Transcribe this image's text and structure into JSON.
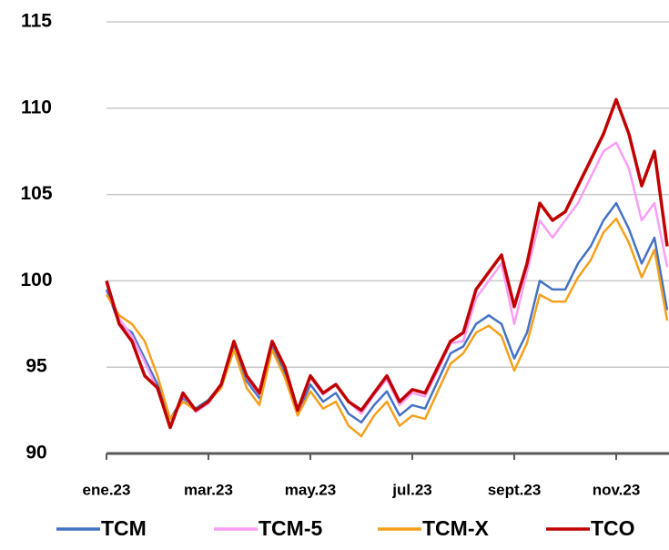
{
  "chart_data": {
    "type": "line",
    "categories": [
      "ene.23",
      null,
      null,
      null,
      null,
      null,
      null,
      null,
      "mar.23",
      null,
      null,
      null,
      null,
      null,
      null,
      null,
      "may.23",
      null,
      null,
      null,
      null,
      null,
      null,
      null,
      "jul.23",
      null,
      null,
      null,
      null,
      null,
      null,
      null,
      "sept.23",
      null,
      null,
      null,
      null,
      null,
      null,
      null,
      "nov.23",
      null,
      null,
      null,
      null
    ],
    "ylim": [
      90,
      115
    ],
    "yticks": [
      90,
      95,
      100,
      105,
      110,
      115
    ],
    "grid": true,
    "series": [
      {
        "name": "TCM",
        "color": "#4472c4",
        "values": [
          99.5,
          97.5,
          97,
          95.5,
          94,
          92,
          93.2,
          92.6,
          93.1,
          94,
          96.3,
          94.2,
          93.2,
          96.2,
          94.6,
          92.3,
          94,
          93,
          93.5,
          92.3,
          91.8,
          92.8,
          93.6,
          92.2,
          92.8,
          92.6,
          94.2,
          95.8,
          96.2,
          97.5,
          98,
          97.5,
          95.5,
          97,
          100,
          99.5,
          99.5,
          101,
          102,
          103.5,
          104.5,
          103,
          101,
          102.5,
          98.3
        ]
      },
      {
        "name": "TCM-5",
        "color": "#f99ef5",
        "values": [
          99.8,
          97.8,
          96.8,
          95.3,
          93.7,
          91.6,
          93.4,
          92.4,
          92.9,
          94,
          96.4,
          94.4,
          93.4,
          96.4,
          95,
          92.4,
          94.4,
          93.4,
          94,
          93,
          92.3,
          93.4,
          94.3,
          92.8,
          93.5,
          93.3,
          94.8,
          96.4,
          96.5,
          99,
          100,
          101,
          97.5,
          100.5,
          103.5,
          102.5,
          103.5,
          104.5,
          106,
          107.5,
          108,
          106.5,
          103.5,
          104.5,
          100.8
        ]
      },
      {
        "name": "TCM-X",
        "color": "#f5a01c",
        "values": [
          99.2,
          98,
          97.5,
          96.5,
          94.5,
          92,
          93,
          92.5,
          93,
          93.8,
          96,
          93.8,
          92.8,
          96,
          94.4,
          92.2,
          93.6,
          92.6,
          93,
          91.6,
          91,
          92.2,
          93,
          91.6,
          92.2,
          92,
          93.6,
          95.2,
          95.8,
          97,
          97.4,
          96.8,
          94.8,
          96.4,
          99.2,
          98.8,
          98.8,
          100.2,
          101.2,
          102.8,
          103.6,
          102.2,
          100.2,
          101.8,
          97.7
        ]
      },
      {
        "name": "TCO",
        "color": "#c00000",
        "values": [
          100,
          97.5,
          96.5,
          94.5,
          93.8,
          91.5,
          93.5,
          92.5,
          93,
          94,
          96.5,
          94.5,
          93.5,
          96.5,
          95,
          92.5,
          94.5,
          93.5,
          94,
          93,
          92.5,
          93.5,
          94.5,
          93,
          93.7,
          93.5,
          95,
          96.5,
          97,
          99.5,
          100.5,
          101.5,
          98.5,
          101,
          104.5,
          103.5,
          104,
          105.5,
          107,
          108.5,
          110.5,
          108.5,
          105.5,
          107.5,
          102
        ]
      }
    ]
  }
}
